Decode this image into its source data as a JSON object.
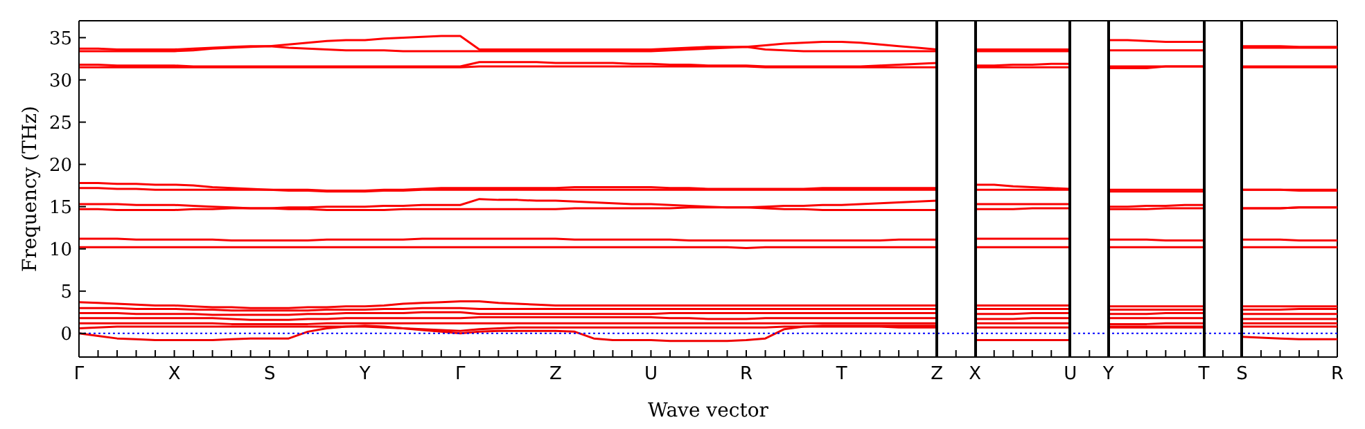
{
  "chart_data": {
    "type": "line",
    "xlabel": "Wave vector",
    "ylabel": "Frequency (THz)",
    "ylim": [
      -2.8,
      37
    ],
    "yticks": [
      0,
      5,
      10,
      15,
      20,
      25,
      30,
      35
    ],
    "categories": [
      "Γ",
      null,
      null,
      null,
      null,
      "X",
      null,
      null,
      null,
      null,
      "S",
      null,
      null,
      null,
      null,
      "Y",
      null,
      null,
      null,
      null,
      "Γ",
      null,
      null,
      null,
      null,
      "Z",
      null,
      null,
      null,
      null,
      "U",
      null,
      null,
      null,
      null,
      "R",
      null,
      null,
      null,
      null,
      "T",
      null,
      null,
      null,
      null,
      "Z",
      null,
      "X",
      null,
      null,
      null,
      null,
      "U",
      null,
      "Y",
      null,
      null,
      null,
      null,
      "T",
      null,
      "S",
      null,
      null,
      null,
      null,
      "R"
    ],
    "grid": false,
    "legend": false,
    "marker": "none",
    "line_style": "solid",
    "ref_lines": [
      {
        "axis": "y",
        "value": 0,
        "color": "#0000ff",
        "line_style": "dotted"
      }
    ],
    "series": [
      {
        "color": "#ff0000",
        "values": [
          33.7,
          33.7,
          33.6,
          33.6,
          33.6,
          33.6,
          33.7,
          33.8,
          33.9,
          34.0,
          34.0,
          34.2,
          34.4,
          34.6,
          34.7,
          34.7,
          34.9,
          35.0,
          35.1,
          35.2,
          35.2,
          33.6,
          33.6,
          33.6,
          33.6,
          33.6,
          33.6,
          33.6,
          33.6,
          33.6,
          33.6,
          33.7,
          33.8,
          33.9,
          33.9,
          33.9,
          34.1,
          34.3,
          34.4,
          34.5,
          34.5,
          34.4,
          34.2,
          34.0,
          33.8,
          33.6,
          null,
          33.6,
          33.6,
          33.6,
          33.6,
          33.6,
          33.6,
          null,
          34.7,
          34.7,
          34.6,
          34.5,
          34.5,
          34.5,
          null,
          34.0,
          34.0,
          34.0,
          33.9,
          33.9,
          33.9
        ]
      },
      {
        "color": "#fe0000",
        "values": [
          33.4,
          33.4,
          33.4,
          33.4,
          33.4,
          33.4,
          33.5,
          33.7,
          33.8,
          33.9,
          34.0,
          33.8,
          33.7,
          33.6,
          33.5,
          33.5,
          33.5,
          33.4,
          33.4,
          33.4,
          33.4,
          33.4,
          33.4,
          33.4,
          33.4,
          33.4,
          33.4,
          33.4,
          33.4,
          33.4,
          33.4,
          33.5,
          33.6,
          33.7,
          33.8,
          33.9,
          33.6,
          33.5,
          33.4,
          33.4,
          33.4,
          33.4,
          33.4,
          33.4,
          33.4,
          33.4,
          null,
          33.4,
          33.4,
          33.4,
          33.4,
          33.4,
          33.4,
          null,
          33.5,
          33.5,
          33.5,
          33.5,
          33.5,
          33.5,
          null,
          33.8,
          33.8,
          33.8,
          33.8,
          33.8,
          33.8
        ]
      },
      {
        "color": "#fd0000",
        "values": [
          31.8,
          31.8,
          31.7,
          31.7,
          31.7,
          31.7,
          31.6,
          31.6,
          31.6,
          31.6,
          31.6,
          31.6,
          31.6,
          31.6,
          31.6,
          31.6,
          31.6,
          31.6,
          31.6,
          31.6,
          31.6,
          32.1,
          32.1,
          32.1,
          32.1,
          32.0,
          32.0,
          32.0,
          32.0,
          31.9,
          31.9,
          31.8,
          31.8,
          31.7,
          31.7,
          31.7,
          31.6,
          31.6,
          31.6,
          31.6,
          31.6,
          31.6,
          31.7,
          31.8,
          31.9,
          32.0,
          null,
          31.7,
          31.7,
          31.8,
          31.8,
          31.9,
          31.9,
          null,
          31.4,
          31.4,
          31.4,
          31.6,
          31.6,
          31.6,
          null,
          31.6,
          31.6,
          31.6,
          31.6,
          31.6,
          31.6
        ]
      },
      {
        "color": "#fc0000",
        "values": [
          31.5,
          31.5,
          31.5,
          31.5,
          31.5,
          31.5,
          31.5,
          31.5,
          31.5,
          31.5,
          31.5,
          31.5,
          31.5,
          31.5,
          31.5,
          31.5,
          31.5,
          31.5,
          31.5,
          31.5,
          31.5,
          31.6,
          31.6,
          31.6,
          31.6,
          31.6,
          31.6,
          31.6,
          31.6,
          31.6,
          31.6,
          31.6,
          31.6,
          31.6,
          31.6,
          31.6,
          31.5,
          31.5,
          31.5,
          31.5,
          31.5,
          31.5,
          31.5,
          31.5,
          31.5,
          31.5,
          null,
          31.5,
          31.5,
          31.5,
          31.5,
          31.5,
          31.5,
          null,
          31.6,
          31.6,
          31.6,
          31.6,
          31.6,
          31.6,
          null,
          31.5,
          31.5,
          31.5,
          31.5,
          31.5,
          31.5
        ]
      },
      {
        "color": "#fb0000",
        "values": [
          17.8,
          17.8,
          17.7,
          17.7,
          17.6,
          17.6,
          17.5,
          17.3,
          17.2,
          17.1,
          17.0,
          17.0,
          17.0,
          16.9,
          16.9,
          16.9,
          17.0,
          17.0,
          17.1,
          17.2,
          17.2,
          17.2,
          17.2,
          17.2,
          17.2,
          17.2,
          17.3,
          17.3,
          17.3,
          17.3,
          17.3,
          17.2,
          17.2,
          17.1,
          17.1,
          17.1,
          17.1,
          17.1,
          17.1,
          17.2,
          17.2,
          17.2,
          17.2,
          17.2,
          17.2,
          17.2,
          null,
          17.6,
          17.6,
          17.4,
          17.3,
          17.2,
          17.1,
          null,
          17.0,
          17.0,
          17.0,
          17.0,
          17.0,
          17.0,
          null,
          17.0,
          17.0,
          17.0,
          17.0,
          17.0,
          17.0
        ]
      },
      {
        "color": "#fa0000",
        "values": [
          17.2,
          17.2,
          17.1,
          17.1,
          17.0,
          17.0,
          17.0,
          17.0,
          17.0,
          17.0,
          17.0,
          16.9,
          16.9,
          16.8,
          16.8,
          16.8,
          16.9,
          16.9,
          17.0,
          17.0,
          17.0,
          17.0,
          17.0,
          17.0,
          17.0,
          17.0,
          17.0,
          17.0,
          17.0,
          17.0,
          17.0,
          17.0,
          17.0,
          17.0,
          17.0,
          17.0,
          17.0,
          17.0,
          17.0,
          17.0,
          17.0,
          17.0,
          17.0,
          17.0,
          17.0,
          17.0,
          null,
          17.0,
          17.0,
          17.0,
          17.0,
          17.0,
          17.0,
          null,
          16.8,
          16.8,
          16.8,
          16.8,
          16.8,
          16.8,
          null,
          17.0,
          17.0,
          17.0,
          16.9,
          16.9,
          16.9
        ]
      },
      {
        "color": "#f90000",
        "values": [
          15.3,
          15.3,
          15.3,
          15.2,
          15.2,
          15.2,
          15.1,
          15.0,
          14.9,
          14.8,
          14.8,
          14.9,
          14.9,
          15.0,
          15.0,
          15.0,
          15.1,
          15.1,
          15.2,
          15.2,
          15.2,
          15.9,
          15.8,
          15.8,
          15.7,
          15.7,
          15.6,
          15.5,
          15.4,
          15.3,
          15.3,
          15.2,
          15.1,
          15.0,
          14.9,
          14.9,
          15.0,
          15.1,
          15.1,
          15.2,
          15.2,
          15.3,
          15.4,
          15.5,
          15.6,
          15.7,
          null,
          15.3,
          15.3,
          15.3,
          15.3,
          15.3,
          15.3,
          null,
          15.0,
          15.0,
          15.1,
          15.1,
          15.2,
          15.2,
          null,
          14.8,
          14.8,
          14.8,
          14.9,
          14.9,
          14.9
        ]
      },
      {
        "color": "#f80000",
        "values": [
          14.7,
          14.7,
          14.6,
          14.6,
          14.6,
          14.6,
          14.7,
          14.7,
          14.8,
          14.8,
          14.8,
          14.7,
          14.7,
          14.6,
          14.6,
          14.6,
          14.6,
          14.7,
          14.7,
          14.7,
          14.7,
          14.7,
          14.7,
          14.7,
          14.7,
          14.7,
          14.8,
          14.8,
          14.8,
          14.8,
          14.8,
          14.8,
          14.9,
          14.9,
          14.9,
          14.9,
          14.8,
          14.7,
          14.7,
          14.6,
          14.6,
          14.6,
          14.6,
          14.6,
          14.6,
          14.6,
          null,
          14.7,
          14.7,
          14.7,
          14.8,
          14.8,
          14.8,
          null,
          14.7,
          14.7,
          14.7,
          14.8,
          14.8,
          14.8,
          null,
          14.8,
          14.8,
          14.8,
          14.9,
          14.9,
          14.9
        ]
      },
      {
        "color": "#f70000",
        "values": [
          11.2,
          11.2,
          11.2,
          11.1,
          11.1,
          11.1,
          11.1,
          11.1,
          11.0,
          11.0,
          11.0,
          11.0,
          11.0,
          11.1,
          11.1,
          11.1,
          11.1,
          11.1,
          11.2,
          11.2,
          11.2,
          11.2,
          11.2,
          11.2,
          11.2,
          11.2,
          11.1,
          11.1,
          11.1,
          11.1,
          11.1,
          11.1,
          11.0,
          11.0,
          11.0,
          11.0,
          11.0,
          11.0,
          11.0,
          11.0,
          11.0,
          11.0,
          11.0,
          11.1,
          11.1,
          11.1,
          null,
          11.2,
          11.2,
          11.2,
          11.2,
          11.2,
          11.2,
          null,
          11.1,
          11.1,
          11.1,
          11.0,
          11.0,
          11.0,
          null,
          11.1,
          11.1,
          11.1,
          11.0,
          11.0,
          11.0
        ]
      },
      {
        "color": "#f60000",
        "values": [
          10.2,
          10.2,
          10.2,
          10.2,
          10.2,
          10.2,
          10.2,
          10.2,
          10.2,
          10.2,
          10.2,
          10.2,
          10.2,
          10.2,
          10.2,
          10.2,
          10.2,
          10.2,
          10.2,
          10.2,
          10.2,
          10.2,
          10.2,
          10.2,
          10.2,
          10.2,
          10.2,
          10.2,
          10.2,
          10.2,
          10.2,
          10.2,
          10.2,
          10.2,
          10.2,
          10.1,
          10.2,
          10.2,
          10.2,
          10.2,
          10.2,
          10.2,
          10.2,
          10.2,
          10.2,
          10.2,
          null,
          10.2,
          10.2,
          10.2,
          10.2,
          10.2,
          10.2,
          null,
          10.2,
          10.2,
          10.2,
          10.2,
          10.2,
          10.2,
          null,
          10.2,
          10.2,
          10.2,
          10.2,
          10.2,
          10.2
        ]
      },
      {
        "color": "#f50000",
        "values": [
          3.7,
          3.6,
          3.5,
          3.4,
          3.3,
          3.3,
          3.2,
          3.1,
          3.1,
          3.0,
          3.0,
          3.0,
          3.1,
          3.1,
          3.2,
          3.2,
          3.3,
          3.5,
          3.6,
          3.7,
          3.8,
          3.8,
          3.6,
          3.5,
          3.4,
          3.3,
          3.3,
          3.3,
          3.3,
          3.3,
          3.3,
          3.3,
          3.3,
          3.3,
          3.3,
          3.3,
          3.3,
          3.3,
          3.3,
          3.3,
          3.3,
          3.3,
          3.3,
          3.3,
          3.3,
          3.3,
          null,
          3.3,
          3.3,
          3.3,
          3.3,
          3.3,
          3.3,
          null,
          3.2,
          3.2,
          3.2,
          3.2,
          3.2,
          3.2,
          null,
          3.2,
          3.2,
          3.2,
          3.2,
          3.2,
          3.2
        ]
      },
      {
        "color": "#f40000",
        "values": [
          3.0,
          3.0,
          3.0,
          2.9,
          2.9,
          2.9,
          2.8,
          2.8,
          2.7,
          2.7,
          2.7,
          2.7,
          2.7,
          2.8,
          2.8,
          2.8,
          2.9,
          2.9,
          3.0,
          3.0,
          3.0,
          2.9,
          2.9,
          2.9,
          2.9,
          2.9,
          2.9,
          2.9,
          2.9,
          2.9,
          2.9,
          2.9,
          2.9,
          2.9,
          2.9,
          2.9,
          2.9,
          2.9,
          2.9,
          2.9,
          2.9,
          2.9,
          2.9,
          2.9,
          2.9,
          2.9,
          null,
          2.9,
          2.9,
          2.9,
          2.9,
          2.9,
          2.9,
          null,
          2.8,
          2.8,
          2.8,
          2.8,
          2.8,
          2.8,
          null,
          2.8,
          2.8,
          2.8,
          2.9,
          2.9,
          2.9
        ]
      },
      {
        "color": "#f30000",
        "values": [
          2.4,
          2.4,
          2.4,
          2.3,
          2.3,
          2.3,
          2.3,
          2.2,
          2.2,
          2.2,
          2.2,
          2.2,
          2.3,
          2.3,
          2.4,
          2.4,
          2.4,
          2.4,
          2.5,
          2.5,
          2.5,
          2.3,
          2.3,
          2.3,
          2.3,
          2.3,
          2.3,
          2.3,
          2.3,
          2.3,
          2.3,
          2.4,
          2.4,
          2.4,
          2.4,
          2.4,
          2.4,
          2.4,
          2.4,
          2.4,
          2.4,
          2.4,
          2.4,
          2.4,
          2.4,
          2.4,
          null,
          2.3,
          2.3,
          2.3,
          2.4,
          2.4,
          2.4,
          null,
          2.3,
          2.3,
          2.3,
          2.4,
          2.4,
          2.4,
          null,
          2.3,
          2.3,
          2.3,
          2.3,
          2.3,
          2.3
        ]
      },
      {
        "color": "#f20000",
        "values": [
          1.8,
          1.8,
          1.8,
          1.8,
          1.8,
          1.8,
          1.8,
          1.8,
          1.7,
          1.6,
          1.6,
          1.6,
          1.7,
          1.7,
          1.8,
          1.8,
          1.8,
          1.8,
          1.8,
          1.8,
          1.8,
          1.9,
          1.9,
          1.9,
          1.9,
          1.9,
          1.9,
          1.9,
          1.9,
          1.9,
          1.9,
          1.8,
          1.8,
          1.7,
          1.7,
          1.7,
          1.8,
          1.8,
          1.8,
          1.8,
          1.8,
          1.8,
          1.8,
          1.8,
          1.8,
          1.8,
          null,
          1.7,
          1.7,
          1.7,
          1.8,
          1.8,
          1.8,
          null,
          1.8,
          1.8,
          1.8,
          1.8,
          1.8,
          1.8,
          null,
          1.7,
          1.7,
          1.7,
          1.7,
          1.7,
          1.7
        ]
      },
      {
        "color": "#f10000",
        "values": [
          1.2,
          1.2,
          1.2,
          1.2,
          1.2,
          1.2,
          1.2,
          1.2,
          1.1,
          1.1,
          1.1,
          1.1,
          1.1,
          1.2,
          1.2,
          1.2,
          1.2,
          1.2,
          1.2,
          1.2,
          1.2,
          1.2,
          1.2,
          1.2,
          1.2,
          1.2,
          1.2,
          1.2,
          1.2,
          1.2,
          1.2,
          1.2,
          1.2,
          1.2,
          1.2,
          1.2,
          1.2,
          1.2,
          1.2,
          1.2,
          1.2,
          1.2,
          1.2,
          1.2,
          1.2,
          1.2,
          null,
          1.2,
          1.2,
          1.2,
          1.2,
          1.2,
          1.2,
          null,
          1.1,
          1.1,
          1.1,
          1.2,
          1.2,
          1.2,
          null,
          1.2,
          1.2,
          1.2,
          1.2,
          1.2,
          1.2
        ]
      },
      {
        "color": "#f00000",
        "values": [
          0.6,
          0.7,
          0.8,
          0.8,
          0.8,
          0.8,
          0.8,
          0.8,
          0.8,
          0.8,
          0.8,
          0.8,
          0.8,
          0.8,
          0.8,
          0.8,
          0.7,
          0.6,
          0.5,
          0.4,
          0.3,
          0.5,
          0.6,
          0.7,
          0.7,
          0.7,
          0.7,
          0.7,
          0.7,
          0.7,
          0.7,
          0.7,
          0.7,
          0.7,
          0.7,
          0.7,
          0.7,
          0.8,
          0.8,
          0.8,
          0.8,
          0.8,
          0.8,
          0.7,
          0.7,
          0.7,
          null,
          0.7,
          0.7,
          0.7,
          0.7,
          0.7,
          0.7,
          null,
          0.8,
          0.8,
          0.8,
          0.8,
          0.8,
          0.8,
          null,
          0.8,
          0.8,
          0.8,
          0.8,
          0.8,
          0.8
        ]
      },
      {
        "color": "#ef0000",
        "values": [
          0,
          -0.3,
          -0.6,
          -0.7,
          -0.8,
          -0.8,
          -0.8,
          -0.8,
          -0.7,
          -0.6,
          -0.6,
          -0.6,
          0.2,
          0.6,
          0.8,
          0.9,
          0.8,
          0.6,
          0.4,
          0.2,
          0,
          0.2,
          0.3,
          0.3,
          0.3,
          0.3,
          0.2,
          -0.6,
          -0.8,
          -0.8,
          -0.8,
          -0.9,
          -0.9,
          -0.9,
          -0.9,
          -0.8,
          -0.6,
          0.5,
          0.8,
          0.9,
          0.9,
          0.9,
          0.9,
          0.9,
          0.9,
          0.9,
          null,
          -0.8,
          -0.8,
          -0.8,
          -0.8,
          -0.8,
          -0.8,
          null,
          0.7,
          0.7,
          0.7,
          0.7,
          0.7,
          0.7,
          null,
          -0.4,
          -0.5,
          -0.6,
          -0.7,
          -0.7,
          -0.7
        ]
      }
    ]
  }
}
